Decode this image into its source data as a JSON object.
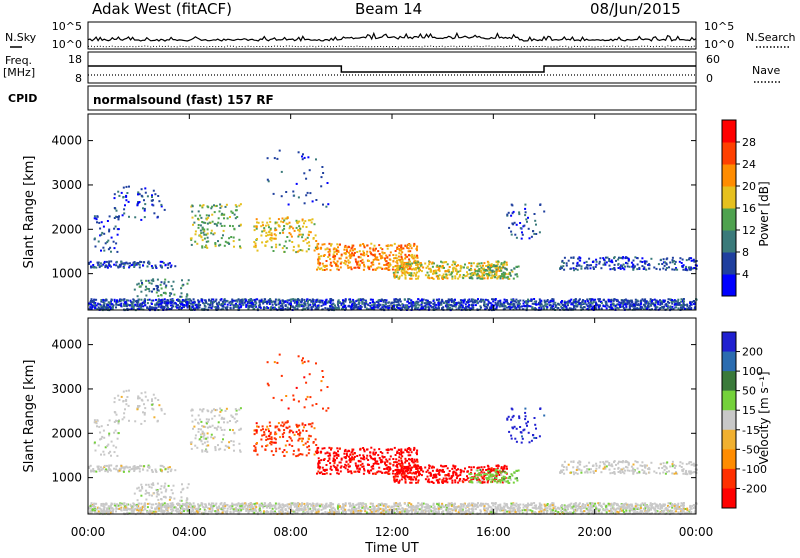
{
  "header": {
    "radar": "Adak West (fitACF)",
    "beam": "Beam 14",
    "date": "08/Jun/2015"
  },
  "top_panels": {
    "nsky_label": "N.Sky",
    "nsky_tick_hi": "10^5",
    "nsky_tick_lo": "10^0",
    "nsearch_label": "N.Search",
    "nsearch_tick_hi": "10^5",
    "nsearch_tick_lo": "10^0",
    "freq_label": "Freq.",
    "freq_unit": "[MHz]",
    "freq_tick_hi": "18",
    "freq_tick_lo": "8",
    "nave_label": "Nave",
    "nave_tick_hi": "60",
    "nave_tick_lo": "0",
    "cpid_label": "CPID",
    "cpid_value": "normalsound (fast) 157 RF"
  },
  "chart_data": [
    {
      "type": "heatmap",
      "panel": "power",
      "ylabel": "Slant Range [km]",
      "ylim": [
        180,
        4600
      ],
      "yticks": [
        "1000",
        "2000",
        "3000",
        "4000"
      ],
      "ytick_values": [
        1000,
        2000,
        3000,
        4000
      ],
      "colorbar_label": "Power [dB]",
      "colorbar_ticks": [
        "4",
        "8",
        "12",
        "16",
        "20",
        "24",
        "28"
      ],
      "colorbar_range": [
        0,
        31
      ],
      "colors": [
        "#0000ff",
        "#1f3f9e",
        "#3a7a7a",
        "#4fa24f",
        "#e6c01e",
        "#ff8c00",
        "#ff4000",
        "#ff0000"
      ]
    },
    {
      "type": "heatmap",
      "panel": "velocity",
      "ylabel": "Slant Range [km]",
      "ylim": [
        180,
        4600
      ],
      "yticks": [
        "1000",
        "2000",
        "3000",
        "4000"
      ],
      "ytick_values": [
        1000,
        2000,
        3000,
        4000
      ],
      "colorbar_label": "Velocity [m s⁻¹]",
      "colorbar_ticks": [
        "200",
        "100",
        "50",
        "15",
        "-15",
        "-50",
        "-100",
        "-200"
      ],
      "colors": [
        "#2020d0",
        "#2b6cb0",
        "#3a7a3a",
        "#74d13a",
        "#c8c8c8",
        "#f0b030",
        "#ff8c00",
        "#ff3000",
        "#ff0000"
      ]
    }
  ],
  "time_axis": {
    "xlabel": "Time UT",
    "ticks": [
      "00:00",
      "04:00",
      "08:00",
      "12:00",
      "16:00",
      "20:00",
      "00:00"
    ],
    "tick_hours": [
      0,
      4,
      8,
      12,
      16,
      20,
      24
    ],
    "xlim_hours": [
      0,
      24
    ]
  }
}
